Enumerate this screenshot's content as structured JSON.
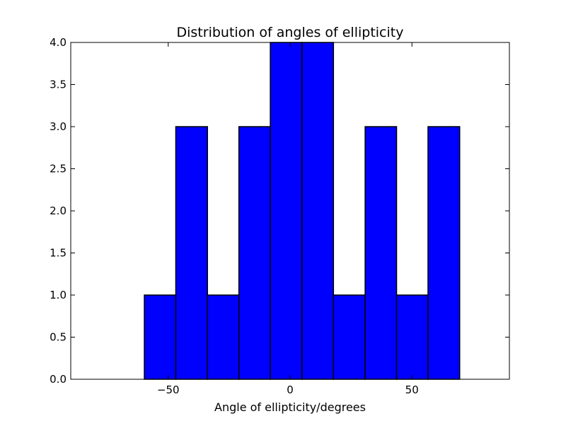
{
  "chart_data": {
    "type": "bar",
    "title": "Distribution of angles of ellipticity",
    "xlabel": "Angle of ellipticity/degrees",
    "ylabel": "",
    "xlim": [
      -90,
      90
    ],
    "ylim": [
      0.0,
      4.0
    ],
    "bins": [
      {
        "x0": -59.8,
        "x1": -46.9,
        "count": 1
      },
      {
        "x0": -46.9,
        "x1": -33.9,
        "count": 3
      },
      {
        "x0": -33.9,
        "x1": -21.0,
        "count": 1
      },
      {
        "x0": -21.0,
        "x1": -8.1,
        "count": 3
      },
      {
        "x0": -8.1,
        "x1": 4.9,
        "count": 4
      },
      {
        "x0": 4.9,
        "x1": 17.8,
        "count": 4
      },
      {
        "x0": 17.8,
        "x1": 30.8,
        "count": 1
      },
      {
        "x0": 30.8,
        "x1": 43.7,
        "count": 3
      },
      {
        "x0": 43.7,
        "x1": 56.6,
        "count": 1
      },
      {
        "x0": 56.6,
        "x1": 69.6,
        "count": 3
      }
    ],
    "x_ticks": [
      {
        "value": -50,
        "label": "−50"
      },
      {
        "value": 0,
        "label": "0"
      },
      {
        "value": 50,
        "label": "50"
      }
    ],
    "y_ticks": [
      {
        "value": 0.0,
        "label": "0.0"
      },
      {
        "value": 0.5,
        "label": "0.5"
      },
      {
        "value": 1.0,
        "label": "1.0"
      },
      {
        "value": 1.5,
        "label": "1.5"
      },
      {
        "value": 2.0,
        "label": "2.0"
      },
      {
        "value": 2.5,
        "label": "2.5"
      },
      {
        "value": 3.0,
        "label": "3.0"
      },
      {
        "value": 3.5,
        "label": "3.5"
      },
      {
        "value": 4.0,
        "label": "4.0"
      }
    ],
    "bar_color": "#0000ff",
    "edge_color": "#000000",
    "grid": false,
    "legend": "none"
  }
}
